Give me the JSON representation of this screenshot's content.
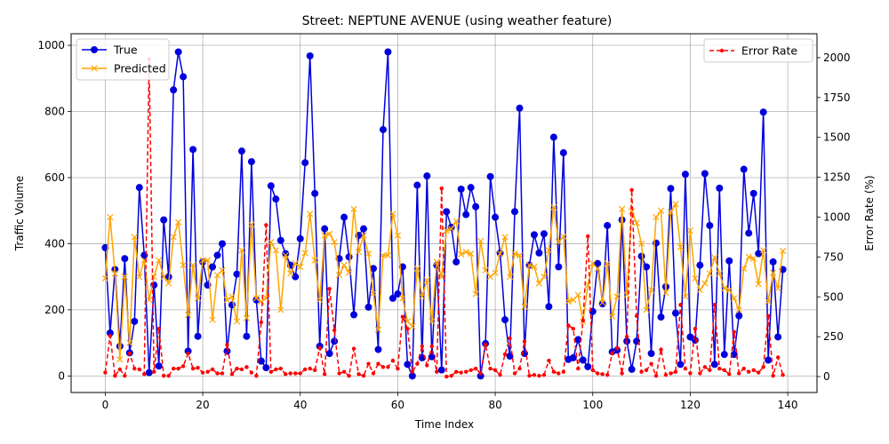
{
  "chart_data": {
    "type": "line",
    "title": "Street: NEPTUNE AVENUE (using weather feature)",
    "xlabel": "Time Index",
    "ylabel_left": "Traffic Volume",
    "ylabel_right": "Error Rate (%)",
    "xlim": [
      -7,
      146
    ],
    "ylim_left": [
      -50,
      1035
    ],
    "ylim_right": [
      -100,
      2150
    ],
    "xticks": [
      0,
      20,
      40,
      60,
      80,
      100,
      120,
      140
    ],
    "yticks_left": [
      0,
      200,
      400,
      600,
      800,
      1000
    ],
    "yticks_right": [
      0,
      250,
      500,
      750,
      1000,
      1250,
      1500,
      1750,
      2000
    ],
    "grid": true,
    "legend_left_position": "upper-left",
    "legend_right_position": "upper-right",
    "x": [
      0,
      1,
      2,
      3,
      4,
      5,
      6,
      7,
      8,
      9,
      10,
      11,
      12,
      13,
      14,
      15,
      16,
      17,
      18,
      19,
      20,
      21,
      22,
      23,
      24,
      25,
      26,
      27,
      28,
      29,
      30,
      31,
      32,
      33,
      34,
      35,
      36,
      37,
      38,
      39,
      40,
      41,
      42,
      43,
      44,
      45,
      46,
      47,
      48,
      49,
      50,
      51,
      52,
      53,
      54,
      55,
      56,
      57,
      58,
      59,
      60,
      61,
      62,
      63,
      64,
      65,
      66,
      67,
      68,
      69,
      70,
      71,
      72,
      73,
      74,
      75,
      76,
      77,
      78,
      79,
      80,
      81,
      82,
      83,
      84,
      85,
      86,
      87,
      88,
      89,
      90,
      91,
      92,
      93,
      94,
      95,
      96,
      97,
      98,
      99,
      100,
      101,
      102,
      103,
      104,
      105,
      106,
      107,
      108,
      109,
      110,
      111,
      112,
      113,
      114,
      115,
      116,
      117,
      118,
      119,
      120,
      121,
      122,
      123,
      124,
      125,
      126,
      127,
      128,
      129,
      130,
      131,
      132,
      133,
      134,
      135,
      136,
      137,
      138,
      139
    ],
    "series": [
      {
        "name": "True",
        "axis": "left",
        "color": "#0000dd",
        "marker": "circle",
        "values": [
          388,
          130,
          322,
          90,
          355,
          70,
          165,
          570,
          365,
          10,
          275,
          30,
          472,
          300,
          865,
          980,
          905,
          75,
          685,
          120,
          345,
          275,
          330,
          365,
          400,
          75,
          215,
          308,
          680,
          120,
          648,
          230,
          45,
          25,
          575,
          535,
          410,
          370,
          335,
          300,
          415,
          645,
          968,
          552,
          90,
          445,
          68,
          105,
          355,
          480,
          360,
          185,
          425,
          445,
          208,
          325,
          80,
          745,
          980,
          235,
          248,
          330,
          35,
          0,
          577,
          55,
          605,
          58,
          335,
          18,
          497,
          450,
          345,
          565,
          488,
          570,
          512,
          0,
          98,
          603,
          480,
          372,
          170,
          60,
          497,
          810,
          68,
          335,
          427,
          372,
          430,
          210,
          722,
          330,
          675,
          50,
          55,
          110,
          48,
          28,
          195,
          340,
          218,
          455,
          73,
          78,
          472,
          105,
          20,
          105,
          362,
          330,
          68,
          402,
          178,
          270,
          567,
          190,
          35,
          610,
          118,
          108,
          335,
          612,
          455,
          35,
          568,
          65,
          348,
          65,
          182,
          625,
          432,
          552,
          370,
          798,
          48,
          345,
          118,
          322
        ]
      },
      {
        "name": "Predicted",
        "axis": "left",
        "color": "#ffa500",
        "marker": "x",
        "values": [
          295,
          480,
          310,
          50,
          300,
          100,
          420,
          300,
          350,
          230,
          300,
          350,
          300,
          280,
          420,
          465,
          335,
          185,
          335,
          235,
          350,
          350,
          170,
          305,
          320,
          230,
          240,
          165,
          380,
          175,
          458,
          235,
          225,
          235,
          405,
          380,
          200,
          365,
          310,
          340,
          330,
          372,
          490,
          350,
          230,
          425,
          430,
          405,
          305,
          335,
          312,
          505,
          375,
          425,
          370,
          250,
          140,
          365,
          365,
          490,
          425,
          235,
          165,
          150,
          325,
          240,
          290,
          165,
          345,
          300,
          440,
          445,
          468,
          368,
          375,
          370,
          248,
          408,
          320,
          300,
          312,
          370,
          420,
          300,
          370,
          365,
          210,
          335,
          330,
          280,
          300,
          380,
          510,
          405,
          422,
          225,
          230,
          245,
          165,
          275,
          340,
          325,
          222,
          340,
          180,
          240,
          505,
          245,
          498,
          463,
          400,
          200,
          260,
          480,
          500,
          252,
          495,
          520,
          390,
          240,
          440,
          295,
          260,
          280,
          310,
          358,
          310,
          265,
          260,
          235,
          200,
          325,
          360,
          355,
          278,
          380,
          225,
          312,
          265,
          378
        ]
      },
      {
        "name": "Error Rate",
        "axis": "right",
        "color": "#ff0000",
        "marker": "dot",
        "dashed": true,
        "values": [
          25,
          255,
          5,
          45,
          5,
          145,
          50,
          45,
          15,
          1990,
          30,
          300,
          5,
          5,
          50,
          50,
          65,
          145,
          50,
          55,
          25,
          30,
          45,
          20,
          20,
          200,
          15,
          50,
          45,
          60,
          25,
          5,
          340,
          950,
          30,
          45,
          50,
          15,
          20,
          20,
          20,
          45,
          50,
          40,
          180,
          15,
          550,
          290,
          20,
          30,
          5,
          175,
          15,
          5,
          80,
          20,
          80,
          60,
          60,
          100,
          50,
          375,
          300,
          30,
          80,
          190,
          70,
          190,
          30,
          1180,
          0,
          5,
          30,
          25,
          30,
          40,
          50,
          20,
          200,
          50,
          40,
          10,
          140,
          240,
          20,
          50,
          220,
          5,
          10,
          5,
          10,
          100,
          30,
          20,
          30,
          320,
          300,
          50,
          350,
          880,
          40,
          20,
          15,
          10,
          145,
          180,
          20,
          250,
          1170,
          380,
          30,
          40,
          80,
          5,
          170,
          10,
          20,
          30,
          450,
          50,
          20,
          300,
          20,
          60,
          40,
          450,
          50,
          40,
          15,
          280,
          20,
          50,
          30,
          40,
          25,
          60,
          380,
          5,
          120,
          10
        ]
      }
    ]
  }
}
